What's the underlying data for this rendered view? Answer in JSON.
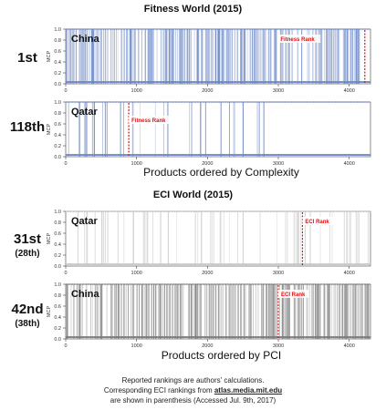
{
  "section1_title": "Fitness World (2015)",
  "section2_title": "ECI World (2015)",
  "rank_1st": "1st",
  "rank_118th": "118th",
  "rank_31st": "31st",
  "rank_31st_paren": "(28th)",
  "rank_42nd": "42nd",
  "rank_42nd_paren": "(38th)",
  "xlabel_complexity": "Products ordered by Complexity",
  "xlabel_pci": "Products ordered by PCI",
  "footnote": {
    "line1": "Reported rankings are authors' calculations.",
    "line2_prefix": "Corresponding ECI rankings from ",
    "line2_link": "atlas.media.mit.edu",
    "line3": "are shown in parenthesis (Accessed Jul. 9th, 2017)"
  },
  "colors": {
    "fitness_bars": "#6a86c4",
    "eci_bars": "#7a7a7a",
    "eci_light_bars": "#c8c8c8",
    "marker": "#e01010"
  },
  "chart_data": [
    {
      "type": "bar",
      "country": "China",
      "ylabel": "MCP",
      "x_ticks": [
        0,
        1000,
        2000,
        3000,
        4000
      ],
      "y_ticks": [
        "0.0",
        "0.2",
        "0.4",
        "0.6",
        "0.8",
        "1.0"
      ],
      "xlim": [
        0,
        4300
      ],
      "ylim": [
        0,
        1
      ],
      "marker_label": "Fitness Rank",
      "marker_x": 4220,
      "bar_style": "fitness",
      "density": 0.62,
      "dense_until": 4150,
      "description_values": "binary MCP (1 = product exported with RCA)"
    },
    {
      "type": "bar",
      "country": "Qatar",
      "ylabel": "MCP",
      "x_ticks": [
        0,
        1000,
        2000,
        3000,
        4000
      ],
      "y_ticks": [
        "0.0",
        "0.2",
        "0.4",
        "0.6",
        "0.8",
        "1.0"
      ],
      "xlim": [
        0,
        4300
      ],
      "ylim": [
        0,
        1
      ],
      "marker_label": "Fitness Rank",
      "marker_x": 890,
      "bar_style": "fitness",
      "density": 0.12,
      "dense_until": 2800
    },
    {
      "type": "bar",
      "country": "Qatar",
      "ylabel": "MCP",
      "x_ticks": [
        0,
        1000,
        2000,
        3000,
        4000
      ],
      "y_ticks": [
        "0.0",
        "0.2",
        "0.4",
        "0.6",
        "0.8",
        "1.0"
      ],
      "xlim": [
        0,
        4300
      ],
      "ylim": [
        0,
        1
      ],
      "marker_label": "ECI Rank",
      "marker_x": 3340,
      "bar_style": "eci_light",
      "density": 0.14,
      "dense_until": 4300
    },
    {
      "type": "bar",
      "country": "China",
      "ylabel": "MCP",
      "x_ticks": [
        0,
        1000,
        2000,
        3000,
        4000
      ],
      "y_ticks": [
        "0.0",
        "0.2",
        "0.4",
        "0.6",
        "0.8",
        "1.0"
      ],
      "xlim": [
        0,
        4300
      ],
      "ylim": [
        0,
        1
      ],
      "marker_label": "ECI Rank",
      "marker_x": 3000,
      "bar_style": "eci",
      "density": 0.6,
      "dense_until": 4300
    }
  ]
}
